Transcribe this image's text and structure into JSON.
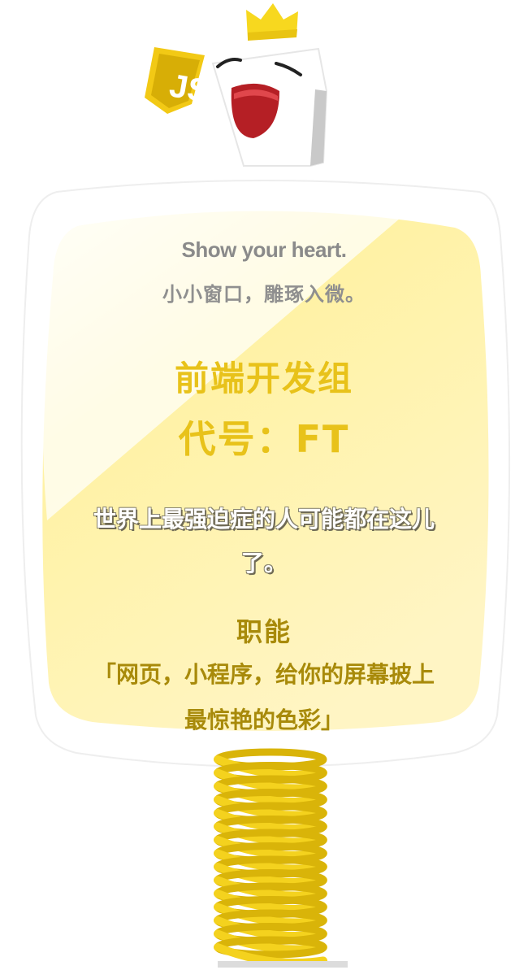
{
  "mascot": {
    "badge_icon": "js-shield-icon",
    "crown_icon": "crown-icon"
  },
  "card": {
    "slogan_en": "Show your heart.",
    "slogan_cn": "小小窗口，雕琢入微。",
    "team_name": "前端开发组",
    "team_code": "代号：FT",
    "motto": "世界上最强迫症的人可能都在这儿了。",
    "duty_title": "职能",
    "duty_desc": "「网页，小程序，给你的屏幕披上最惊艳的色彩」"
  },
  "colors": {
    "accent_yellow": "#e8c21a",
    "dark_yellow": "#a88a0a",
    "card_fill": "#fff1a0",
    "spring": "#f4d21e"
  }
}
